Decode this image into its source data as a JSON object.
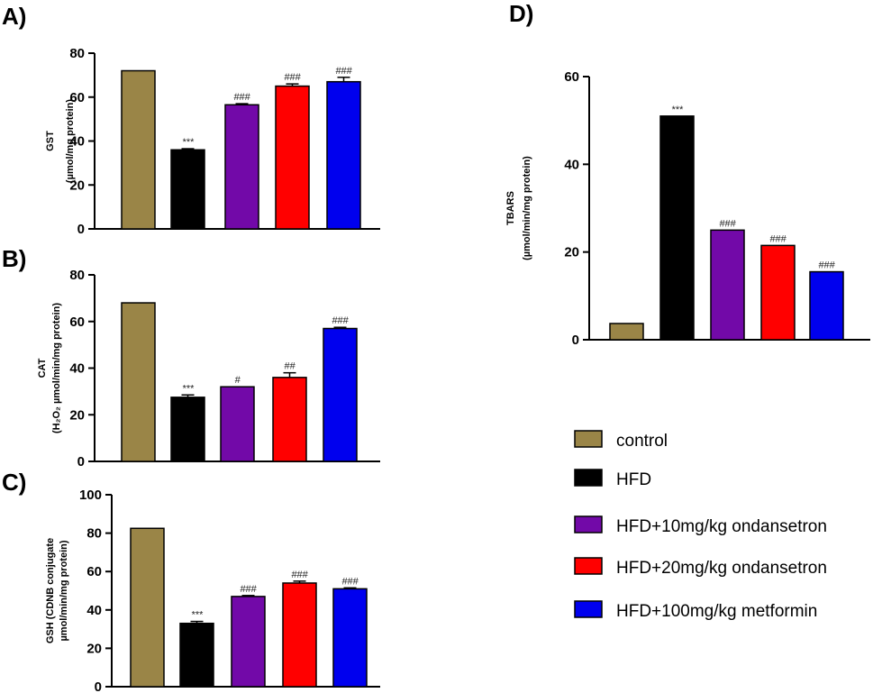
{
  "colors": {
    "control": "#9a8547",
    "hfd": "#000000",
    "ond10": "#7209a8",
    "ond20": "#ff0000",
    "metformin": "#0000ee"
  },
  "chart_data": [
    {
      "panel": "A)",
      "type": "bar",
      "categories": [
        "control",
        "HFD",
        "HFD+10mg/kg ondansetron",
        "HFD+20mg/kg ondansetron",
        "HFD+100mg/kg metformin"
      ],
      "values": [
        72,
        36,
        56.5,
        65,
        67
      ],
      "errors": [
        0,
        0.5,
        0.5,
        1,
        2
      ],
      "annotations": [
        "",
        "***",
        "###",
        "###",
        "###"
      ],
      "ylabel": [
        "GST",
        "(µmol/mg protein)"
      ],
      "ylim": [
        0,
        80
      ],
      "yticks": [
        0,
        20,
        40,
        60,
        80
      ],
      "ytick_labels": [
        "0",
        "20",
        "40",
        "60",
        "80"
      ]
    },
    {
      "panel": "B)",
      "type": "bar",
      "categories": [
        "control",
        "HFD",
        "HFD+10mg/kg ondansetron",
        "HFD+20mg/kg ondansetron",
        "HFD+100mg/kg metformin"
      ],
      "values": [
        68,
        27.5,
        32,
        36,
        57
      ],
      "errors": [
        0,
        1,
        0,
        2,
        0.5
      ],
      "annotations": [
        "",
        "***",
        "#",
        "##",
        "###"
      ],
      "ylabel": [
        "CAT",
        "(H₂O₂ µmol/min/mg protein)"
      ],
      "ylim": [
        0,
        80
      ],
      "yticks": [
        0,
        20,
        40,
        60,
        80
      ],
      "ytick_labels": [
        "0",
        "20",
        "40",
        "60",
        "80"
      ]
    },
    {
      "panel": "C)",
      "type": "bar",
      "categories": [
        "control",
        "HFD",
        "HFD+10mg/kg ondansetron",
        "HFD+20mg/kg ondansetron",
        "HFD+100mg/kg metformin"
      ],
      "values": [
        82.5,
        33,
        47,
        54,
        51
      ],
      "errors": [
        0,
        1,
        0.5,
        1,
        0.5
      ],
      "annotations": [
        "",
        "***",
        "###",
        "###",
        "###"
      ],
      "ylabel": [
        "GSH (CDNB conjugate",
        "µmol/min/mg protein)"
      ],
      "ylim": [
        0,
        100
      ],
      "yticks": [
        0,
        20,
        40,
        60,
        80,
        100
      ],
      "ytick_labels": [
        "0",
        "20",
        "40",
        "60",
        "80",
        "100"
      ]
    },
    {
      "panel": "D)",
      "type": "bar",
      "categories": [
        "control",
        "HFD",
        "HFD+10mg/kg ondansetron",
        "HFD+20mg/kg ondansetron",
        "HFD+100mg/kg metformin"
      ],
      "values": [
        3.7,
        51,
        25,
        21.5,
        15.5
      ],
      "errors": [
        0,
        0,
        0,
        0,
        0
      ],
      "annotations": [
        "",
        "***",
        "###",
        "###",
        "###"
      ],
      "ylabel": [
        "TBARS",
        "(µmol/min/mg protein)"
      ],
      "ylim": [
        0,
        60
      ],
      "yticks": [
        0,
        20,
        40,
        60
      ],
      "ytick_labels": [
        "0",
        "20",
        "40",
        "60"
      ]
    }
  ],
  "legend": {
    "entries": [
      {
        "label": "control",
        "color_key": "control"
      },
      {
        "label": "HFD",
        "color_key": "hfd"
      },
      {
        "label": "HFD+10mg/kg ondansetron",
        "color_key": "ond10"
      },
      {
        "label": "HFD+20mg/kg ondansetron",
        "color_key": "ond20"
      },
      {
        "label": "HFD+100mg/kg metformin",
        "color_key": "metformin"
      }
    ]
  }
}
